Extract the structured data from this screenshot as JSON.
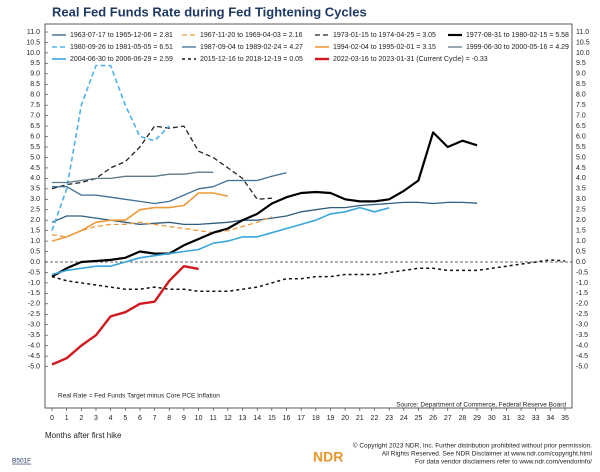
{
  "chart_data": {
    "type": "line",
    "title": "Real Fed Funds Rate during Fed Tightening Cycles",
    "xlabel": "Months after first hike",
    "annotation": "Real Rate = Fed Funds Target minus Core PCE Inflation",
    "source": "Source: Department of Commerce, Federal Reserve Board",
    "chart_id": "B501F",
    "logo": "NDR",
    "footer": [
      "© Copyright 2023 NDR, Inc. Further distribution prohibited without prior permission.",
      "All Rights Reserved. See NDR Disclaimer at www.ndr.com/copyright.html",
      "For data vendor disclaimers refer to www.ndr.com/vendorinfo/"
    ],
    "zero_line": true,
    "grid": false,
    "xlim": [
      0,
      35
    ],
    "ylim": [
      -5.5,
      11
    ],
    "xticks": [
      0,
      1,
      2,
      3,
      4,
      5,
      6,
      7,
      8,
      9,
      10,
      11,
      12,
      13,
      14,
      15,
      16,
      17,
      18,
      19,
      20,
      21,
      22,
      23,
      24,
      25,
      26,
      27,
      28,
      29,
      30,
      31,
      32,
      33,
      34,
      35
    ],
    "yticks": [
      {
        "value": -5,
        "label": "-5.0"
      },
      -4.5,
      {
        "value": -4,
        "label": "-4.0"
      },
      -3.5,
      {
        "value": -3,
        "label": "-3.0"
      },
      -2.5,
      {
        "value": -2,
        "label": "-2.0"
      },
      -1.5,
      {
        "value": -1,
        "label": "-1.0"
      },
      -0.5,
      {
        "value": 0,
        "label": "0.0"
      },
      0.5,
      {
        "value": 1,
        "label": "1.0"
      },
      1.5,
      {
        "value": 2,
        "label": "2.0"
      },
      2.5,
      {
        "value": 3,
        "label": "3.0"
      },
      3.5,
      {
        "value": 4,
        "label": "4.0"
      },
      4.5,
      {
        "value": 5,
        "label": "5.0"
      },
      5.5,
      {
        "value": 6,
        "label": "6.0"
      },
      6.5,
      {
        "value": 7,
        "label": "7.0"
      },
      7.5,
      {
        "value": 8,
        "label": "8.0"
      },
      8.5,
      {
        "value": 9,
        "label": "9.0"
      },
      9.5,
      {
        "value": 10,
        "label": "10.0"
      },
      10.5,
      {
        "value": 11,
        "label": "11.0"
      }
    ],
    "x": [
      0,
      1,
      2,
      3,
      4,
      5,
      6,
      7,
      8,
      9,
      10,
      11,
      12,
      13,
      14,
      15,
      16,
      17,
      18,
      19,
      20,
      21,
      22,
      23,
      24,
      25,
      26,
      27,
      28,
      29,
      30,
      31,
      32,
      33,
      34,
      35
    ],
    "series": [
      {
        "name": "1963-07-17 to 1965-12-06 = 2.81",
        "color": "#2f5e80",
        "style": "solid",
        "width": 1.3,
        "values": [
          1.9,
          2.2,
          2.2,
          2.1,
          2.0,
          1.9,
          1.8,
          1.85,
          1.9,
          1.8,
          1.8,
          1.85,
          1.9,
          2.0,
          2.0,
          2.1,
          2.2,
          2.4,
          2.5,
          2.6,
          2.6,
          2.7,
          2.75,
          2.8,
          2.85,
          2.85,
          2.8,
          2.85,
          2.85,
          2.81,
          null,
          null,
          null,
          null,
          null,
          null
        ]
      },
      {
        "name": "1967-11-20 to 1969-04-03 = 2.16",
        "color": "#ee9a3a",
        "style": "dashed",
        "width": 1.3,
        "values": [
          1.3,
          1.2,
          1.5,
          1.7,
          1.8,
          1.8,
          1.9,
          1.8,
          1.7,
          1.6,
          1.5,
          1.4,
          1.5,
          1.7,
          1.9,
          2.16,
          null,
          null,
          null,
          null,
          null,
          null,
          null,
          null,
          null,
          null,
          null,
          null,
          null,
          null,
          null,
          null,
          null,
          null,
          null,
          null
        ]
      },
      {
        "name": "1973-01-15 to 1974-04-25 = 3.05",
        "color": "#222222",
        "style": "dashed",
        "width": 1.3,
        "values": [
          3.5,
          3.7,
          3.8,
          4.0,
          4.5,
          4.8,
          5.5,
          6.5,
          6.4,
          6.5,
          5.3,
          5.0,
          4.5,
          4.0,
          3.0,
          3.05,
          null,
          null,
          null,
          null,
          null,
          null,
          null,
          null,
          null,
          null,
          null,
          null,
          null,
          null,
          null,
          null,
          null,
          null,
          null,
          null
        ]
      },
      {
        "name": "1977-08-31 to 1980-02-15 = 5.58",
        "color": "#000000",
        "style": "solid",
        "width": 2.2,
        "values": [
          -0.7,
          -0.3,
          0.0,
          0.05,
          0.1,
          0.2,
          0.5,
          0.4,
          0.4,
          0.8,
          1.1,
          1.4,
          1.6,
          2.0,
          2.3,
          2.8,
          3.1,
          3.3,
          3.35,
          3.3,
          3.0,
          2.9,
          2.9,
          3.0,
          3.4,
          3.9,
          6.2,
          5.5,
          5.8,
          5.58,
          null,
          null,
          null,
          null,
          null,
          null
        ]
      },
      {
        "name": "1980-09-26 to 1981-05-05 = 6.51",
        "color": "#4eb2e8",
        "style": "dashed",
        "width": 1.6,
        "values": [
          1.5,
          3.5,
          7.5,
          9.4,
          9.4,
          7.5,
          6.0,
          5.8,
          6.51,
          null,
          null,
          null,
          null,
          null,
          null,
          null,
          null,
          null,
          null,
          null,
          null,
          null,
          null,
          null,
          null,
          null,
          null,
          null,
          null,
          null,
          null,
          null,
          null,
          null,
          null,
          null
        ]
      },
      {
        "name": "1987-09-04 to 1989-02-24 = 4.27",
        "color": "#3d6f98",
        "style": "solid",
        "width": 1.3,
        "values": [
          3.6,
          3.6,
          3.2,
          3.2,
          3.1,
          3.0,
          2.9,
          2.8,
          2.9,
          3.2,
          3.5,
          3.6,
          3.9,
          3.9,
          3.9,
          4.1,
          4.27,
          null,
          null,
          null,
          null,
          null,
          null,
          null,
          null,
          null,
          null,
          null,
          null,
          null,
          null,
          null,
          null,
          null,
          null,
          null
        ]
      },
      {
        "name": "1994-02-04 to 1995-02-01 = 3.15",
        "color": "#ee9a3a",
        "style": "solid",
        "width": 1.6,
        "values": [
          1.0,
          1.2,
          1.5,
          1.9,
          2.0,
          2.0,
          2.5,
          2.6,
          2.6,
          2.7,
          3.3,
          3.3,
          3.15,
          null,
          null,
          null,
          null,
          null,
          null,
          null,
          null,
          null,
          null,
          null,
          null,
          null,
          null,
          null,
          null,
          null,
          null,
          null,
          null,
          null,
          null,
          null
        ]
      },
      {
        "name": "1999-06-30 to 2000-05-16 = 4.29",
        "color": "#5d7a88",
        "style": "solid",
        "width": 1.3,
        "values": [
          3.8,
          3.8,
          3.9,
          4.0,
          4.0,
          4.1,
          4.1,
          4.1,
          4.2,
          4.2,
          4.3,
          4.29,
          null,
          null,
          null,
          null,
          null,
          null,
          null,
          null,
          null,
          null,
          null,
          null,
          null,
          null,
          null,
          null,
          null,
          null,
          null,
          null,
          null,
          null,
          null,
          null
        ]
      },
      {
        "name": "2004-06-30 to 2006-06-29 = 2.59",
        "color": "#3aa6dc",
        "style": "solid",
        "width": 1.6,
        "values": [
          -0.6,
          -0.4,
          -0.3,
          -0.2,
          -0.2,
          0.0,
          0.2,
          0.3,
          0.4,
          0.5,
          0.6,
          0.9,
          1.0,
          1.2,
          1.2,
          1.4,
          1.6,
          1.8,
          2.0,
          2.3,
          2.4,
          2.6,
          2.4,
          2.59,
          null,
          null,
          null,
          null,
          null,
          null,
          null,
          null,
          null,
          null,
          null,
          null
        ]
      },
      {
        "name": "2015-12-16 to 2018-12-19 = 0.05",
        "color": "#111111",
        "style": "dotted",
        "width": 1.5,
        "values": [
          -0.7,
          -0.9,
          -1.0,
          -1.1,
          -1.2,
          -1.3,
          -1.3,
          -1.2,
          -1.3,
          -1.3,
          -1.4,
          -1.4,
          -1.4,
          -1.3,
          -1.2,
          -1.0,
          -0.8,
          -0.8,
          -0.7,
          -0.7,
          -0.6,
          -0.6,
          -0.6,
          -0.5,
          -0.4,
          -0.3,
          -0.3,
          -0.4,
          -0.4,
          -0.4,
          -0.3,
          -0.2,
          -0.1,
          0.0,
          0.1,
          0.05
        ]
      },
      {
        "name": "2022-03-16 to 2023-01-31 (Current Cycle) = -0.33",
        "color": "#d0191f",
        "style": "solid",
        "width": 2.4,
        "values": [
          -4.9,
          -4.6,
          -4.0,
          -3.5,
          -2.6,
          -2.4,
          -2.0,
          -1.9,
          -0.9,
          -0.2,
          -0.33,
          null,
          null,
          null,
          null,
          null,
          null,
          null,
          null,
          null,
          null,
          null,
          null,
          null,
          null,
          null,
          null,
          null,
          null,
          null,
          null,
          null,
          null,
          null,
          null,
          null
        ]
      }
    ]
  }
}
